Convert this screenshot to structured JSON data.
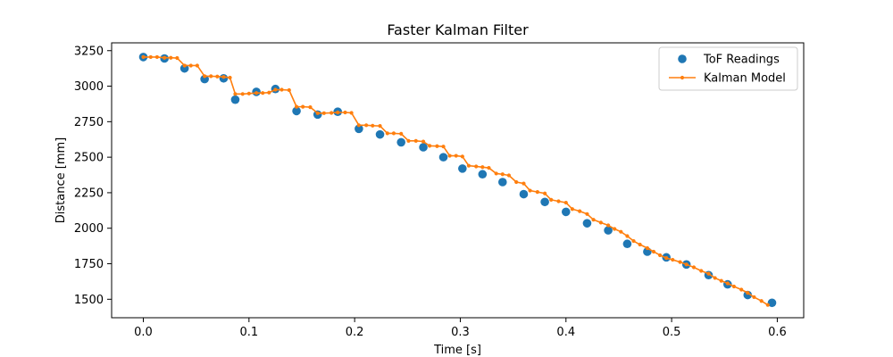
{
  "chart_data": {
    "type": "line",
    "title": "Faster Kalman Filter",
    "xlabel": "Time [s]",
    "ylabel": "Distance [mm]",
    "xlim": [
      -0.03,
      0.625
    ],
    "ylim": [
      1370,
      3305
    ],
    "xticks": [
      0.0,
      0.1,
      0.2,
      0.3,
      0.4,
      0.5,
      0.6
    ],
    "xtick_labels": [
      "0.0",
      "0.1",
      "0.2",
      "0.3",
      "0.4",
      "0.5",
      "0.6"
    ],
    "yticks": [
      1500,
      1750,
      2000,
      2250,
      2500,
      2750,
      3000,
      3250
    ],
    "ytick_labels": [
      "1500",
      "1750",
      "2000",
      "2250",
      "2500",
      "2750",
      "3000",
      "3250"
    ],
    "grid": false,
    "legend": {
      "position": "top-right",
      "entries": [
        "ToF Readings",
        "Kalman Model"
      ]
    },
    "series": [
      {
        "name": "ToF Readings",
        "type": "scatter",
        "color": "#1f77b4",
        "x": [
          0.0,
          0.02,
          0.039,
          0.058,
          0.076,
          0.087,
          0.107,
          0.125,
          0.145,
          0.165,
          0.184,
          0.204,
          0.224,
          0.244,
          0.265,
          0.284,
          0.302,
          0.321,
          0.34,
          0.36,
          0.38,
          0.4,
          0.42,
          0.44,
          0.458,
          0.477,
          0.495,
          0.514,
          0.535,
          0.553,
          0.572,
          0.595
        ],
        "y": [
          3205,
          3195,
          3125,
          3050,
          3055,
          2905,
          2960,
          2980,
          2825,
          2800,
          2820,
          2700,
          2660,
          2605,
          2570,
          2500,
          2420,
          2380,
          2325,
          2240,
          2185,
          2115,
          2035,
          1985,
          1890,
          1835,
          1795,
          1745,
          1670,
          1605,
          1530,
          1475
        ]
      },
      {
        "name": "Kalman Model",
        "type": "line",
        "color": "#ff7f0e",
        "x": [
          0.0,
          0.007,
          0.013,
          0.02,
          0.026,
          0.032,
          0.039,
          0.045,
          0.051,
          0.058,
          0.064,
          0.07,
          0.076,
          0.082,
          0.087,
          0.094,
          0.1,
          0.107,
          0.113,
          0.119,
          0.125,
          0.131,
          0.138,
          0.145,
          0.151,
          0.158,
          0.165,
          0.171,
          0.178,
          0.184,
          0.191,
          0.197,
          0.204,
          0.211,
          0.217,
          0.224,
          0.231,
          0.237,
          0.244,
          0.251,
          0.258,
          0.265,
          0.271,
          0.278,
          0.284,
          0.29,
          0.296,
          0.302,
          0.308,
          0.315,
          0.321,
          0.327,
          0.334,
          0.34,
          0.346,
          0.353,
          0.36,
          0.366,
          0.373,
          0.38,
          0.386,
          0.393,
          0.4,
          0.406,
          0.413,
          0.42,
          0.426,
          0.433,
          0.44,
          0.446,
          0.452,
          0.458,
          0.464,
          0.47,
          0.477,
          0.483,
          0.489,
          0.495,
          0.501,
          0.508,
          0.514,
          0.521,
          0.528,
          0.535,
          0.541,
          0.547,
          0.553,
          0.559,
          0.566,
          0.572,
          0.578,
          0.585,
          0.591
        ],
        "y": [
          3205,
          3205,
          3205,
          3200,
          3200,
          3198,
          3145,
          3145,
          3145,
          3070,
          3070,
          3068,
          3065,
          3060,
          2945,
          2945,
          2948,
          2952,
          2952,
          2955,
          2975,
          2975,
          2972,
          2855,
          2855,
          2852,
          2810,
          2810,
          2812,
          2815,
          2815,
          2812,
          2725,
          2725,
          2722,
          2720,
          2668,
          2668,
          2665,
          2615,
          2615,
          2610,
          2580,
          2578,
          2575,
          2510,
          2510,
          2505,
          2440,
          2435,
          2430,
          2425,
          2385,
          2380,
          2372,
          2325,
          2315,
          2265,
          2255,
          2245,
          2200,
          2190,
          2180,
          2135,
          2120,
          2100,
          2060,
          2040,
          2020,
          1995,
          1975,
          1945,
          1910,
          1885,
          1860,
          1835,
          1810,
          1790,
          1778,
          1762,
          1745,
          1725,
          1700,
          1680,
          1650,
          1630,
          1612,
          1590,
          1568,
          1545,
          1515,
          1488,
          1460
        ]
      }
    ]
  }
}
